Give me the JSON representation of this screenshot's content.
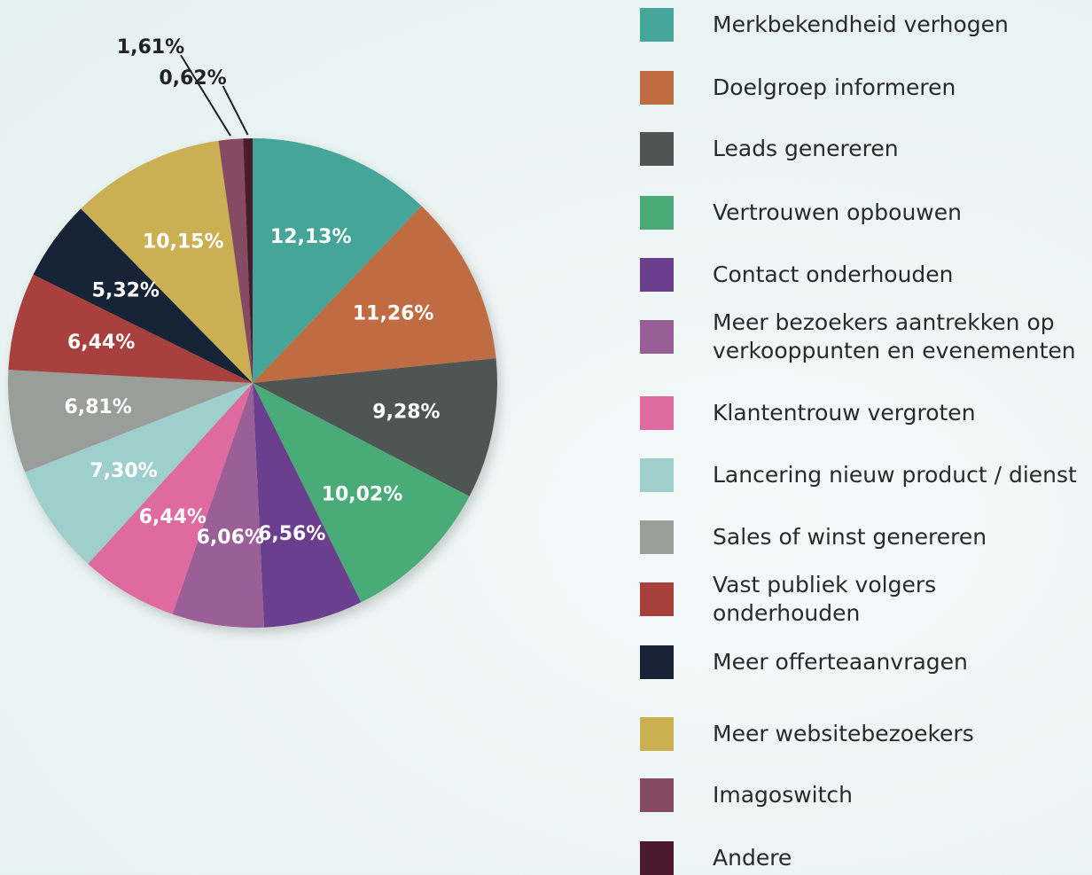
{
  "chart_data": {
    "type": "pie",
    "categories": [
      "Merkbekendheid verhogen",
      "Doelgroep informeren",
      "Leads genereren",
      "Vertrouwen opbouwen",
      "Contact onderhouden",
      "Meer bezoekers aantrekken op verkooppunten en evenementen",
      "Klantentrouw vergroten",
      "Lancering nieuw product / dienst",
      "Sales of winst genereren",
      "Vast publiek volgers onderhouden",
      "Meer offerteaanvragen",
      "Meer websitebezoekers",
      "Imagoswitch",
      "Andere"
    ],
    "values": [
      12.13,
      11.26,
      9.28,
      10.02,
      6.56,
      6.06,
      6.44,
      7.3,
      6.81,
      6.44,
      5.32,
      10.15,
      1.61,
      0.62
    ],
    "value_labels": [
      "12,13%",
      "11,26%",
      "9,28%",
      "10,02%",
      "6,56%",
      "6,06%",
      "6,44%",
      "7,30%",
      "6,81%",
      "6,44%",
      "5,32%",
      "10,15%",
      "1,61%",
      "0,62%"
    ],
    "colors": [
      "#45a598",
      "#c06c43",
      "#4f5552",
      "#4aab78",
      "#6b3f8e",
      "#9a5e96",
      "#de6a9f",
      "#9ecfcc",
      "#9a9e9b",
      "#a8403c",
      "#172335",
      "#cbb052",
      "#864b63",
      "#4b1a2c"
    ],
    "legend": "right"
  }
}
